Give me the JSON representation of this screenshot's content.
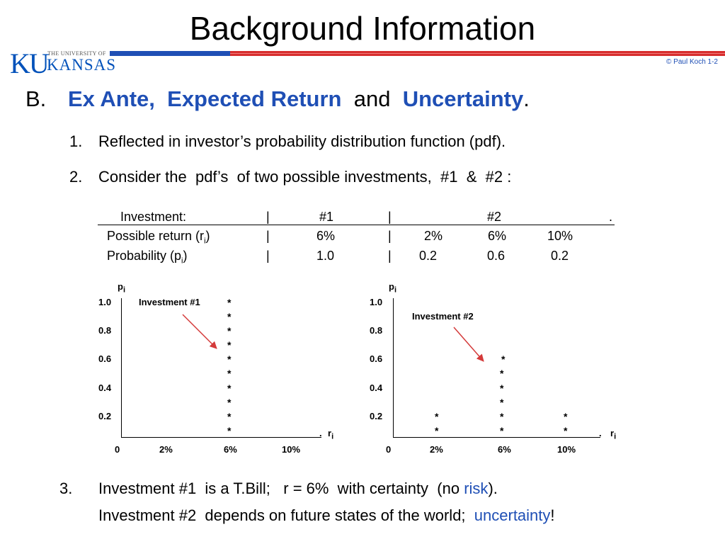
{
  "title": "Background Information",
  "header": {
    "logo_ku": "KU",
    "logo_university": "THE UNIVERSITY OF",
    "logo_kansas": "KANSAS",
    "copyright": "© Paul Koch 1-2"
  },
  "section": {
    "letter": "B.",
    "term1": "Ex Ante",
    "comma": ",",
    "term2": "Expected Return",
    "and": "and",
    "term3": "Uncertainty",
    "period": "."
  },
  "items": [
    {
      "number": "1.",
      "text": "Reflected in investor’s probability distribution function (pdf)."
    },
    {
      "number": "2.",
      "text": "Consider the  pdf’s  of two possible investments,  #1  &  #2 :"
    }
  ],
  "table": {
    "header_label": "Investment:",
    "header_inv1": "#1",
    "header_inv2": "#2",
    "header_end": ".",
    "sep": "|",
    "row1_label": "Possible return (r",
    "row1_sub": "i",
    "row1_close": ")",
    "row1_inv1": "6%",
    "row1_inv2": [
      "2%",
      "6%",
      "10%"
    ],
    "row2_label": "Probability (p",
    "row2_sub": "i",
    "row2_close": ")",
    "row2_inv1": "1.0",
    "row2_inv2": [
      "0.2",
      "0.6",
      "0.2"
    ]
  },
  "graph1": {
    "y_axis_label": "p",
    "y_axis_sub": "i",
    "annotation": "Investment #1",
    "y_ticks": [
      "1.0",
      "0.8",
      "0.6",
      "0.4",
      "0.2"
    ],
    "x_axis_label": "r",
    "x_axis_sub": "i",
    "x_ticks": [
      "0",
      "2%",
      "6%",
      "10%"
    ],
    "star": "*",
    "end": "."
  },
  "graph2": {
    "y_axis_label": "p",
    "y_axis_sub": "i",
    "annotation": "Investment #2",
    "y_ticks": [
      "1.0",
      "0.8",
      "0.6",
      "0.4",
      "0.2"
    ],
    "x_axis_label": "r",
    "x_axis_sub": "i",
    "x_ticks": [
      "0",
      "2%",
      "6%",
      "10%"
    ],
    "star": "*",
    "end": "."
  },
  "item3": {
    "number": "3.",
    "line1_a": "Investment #1  is a T.Bill;   r = 6%  with certainty  (no",
    "line1_risk": "risk",
    "line1_b": ").",
    "line2_a": "Investment #2  depends on future states of the world;",
    "line2_uncertainty": "uncertainty",
    "line2_b": "!"
  },
  "colors": {
    "accent_blue": "#1f4fb5",
    "accent_red": "#d72e2e",
    "arrow": "#d43a3a"
  }
}
